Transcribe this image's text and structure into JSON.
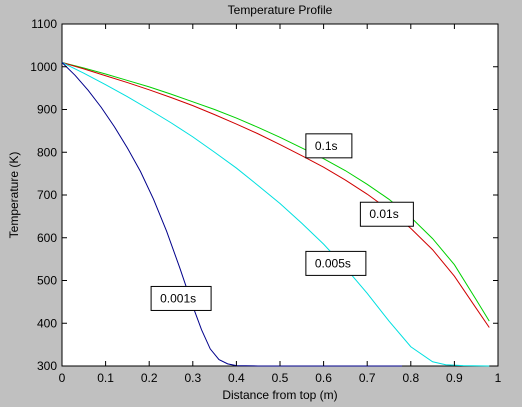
{
  "chart_data": {
    "type": "line",
    "title": "Temperature Profile",
    "xlabel": "Distance from top (m)",
    "ylabel": "Temperature (K)",
    "xlim": [
      0,
      1
    ],
    "ylim": [
      300,
      1100
    ],
    "xticks": [
      0,
      0.1,
      0.2,
      0.3,
      0.4,
      0.5,
      0.6,
      0.7,
      0.8,
      0.9,
      1
    ],
    "xtick_labels": [
      "0",
      "0.1",
      "0.2",
      "0.3",
      "0.4",
      "0.5",
      "0.6",
      "0.7",
      "0.8",
      "0.9",
      "1"
    ],
    "yticks": [
      300,
      400,
      500,
      600,
      700,
      800,
      900,
      1000,
      1100
    ],
    "ytick_labels": [
      "300",
      "400",
      "500",
      "600",
      "700",
      "800",
      "900",
      "1000",
      "1100"
    ],
    "grid": false,
    "series": [
      {
        "color": "#00d000",
        "x": [
          0,
          0.05,
          0.1,
          0.15,
          0.2,
          0.25,
          0.3,
          0.35,
          0.4,
          0.45,
          0.5,
          0.55,
          0.6,
          0.65,
          0.7,
          0.75,
          0.8,
          0.85,
          0.9,
          0.95,
          0.98
        ],
        "y": [
          1010,
          997,
          983,
          968,
          953,
          936,
          918,
          900,
          880,
          858,
          835,
          810,
          785,
          757,
          725,
          690,
          648,
          598,
          537,
          455,
          405
        ]
      },
      {
        "color": "#d00000",
        "x": [
          0,
          0.05,
          0.1,
          0.15,
          0.2,
          0.25,
          0.3,
          0.35,
          0.4,
          0.45,
          0.5,
          0.55,
          0.6,
          0.65,
          0.7,
          0.75,
          0.8,
          0.85,
          0.9,
          0.95,
          0.98
        ],
        "y": [
          1010,
          995,
          979,
          963,
          946,
          928,
          909,
          888,
          866,
          843,
          818,
          792,
          765,
          735,
          702,
          665,
          622,
          572,
          510,
          435,
          390
        ]
      },
      {
        "color": "#00e0e0",
        "x": [
          0,
          0.05,
          0.1,
          0.15,
          0.2,
          0.25,
          0.3,
          0.35,
          0.4,
          0.45,
          0.5,
          0.55,
          0.6,
          0.65,
          0.7,
          0.75,
          0.8,
          0.85,
          0.88,
          0.92,
          0.98
        ],
        "y": [
          1010,
          985,
          958,
          930,
          900,
          869,
          836,
          800,
          763,
          722,
          680,
          634,
          585,
          530,
          470,
          405,
          345,
          310,
          303,
          301,
          300
        ]
      },
      {
        "color": "#00008b",
        "x": [
          0,
          0.03,
          0.06,
          0.09,
          0.12,
          0.15,
          0.18,
          0.21,
          0.24,
          0.27,
          0.3,
          0.32,
          0.34,
          0.36,
          0.38,
          0.4,
          0.45,
          0.55,
          0.65,
          0.78
        ],
        "y": [
          1010,
          980,
          945,
          905,
          860,
          810,
          755,
          690,
          615,
          530,
          440,
          385,
          340,
          315,
          305,
          301,
          300,
          300,
          300,
          300
        ]
      }
    ],
    "annotations": [
      {
        "text": "0.1s",
        "x": 0.58,
        "y": 815
      },
      {
        "text": "0.01s",
        "x": 0.705,
        "y": 655
      },
      {
        "text": "0.005s",
        "x": 0.58,
        "y": 540
      },
      {
        "text": "0.001s",
        "x": 0.225,
        "y": 458
      }
    ]
  }
}
